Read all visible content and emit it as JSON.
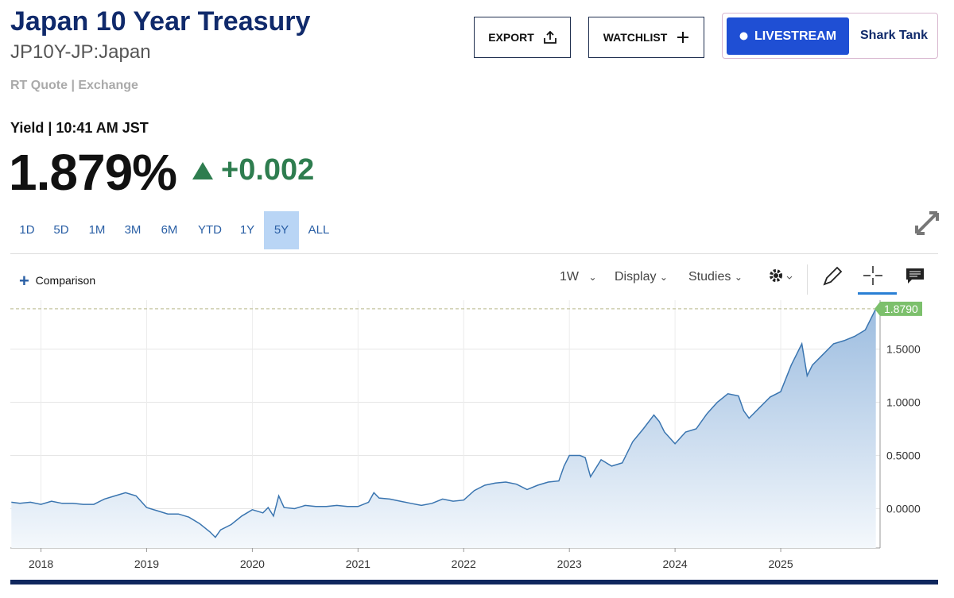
{
  "header": {
    "title": "Japan 10 Year Treasury",
    "symbol": "JP10Y-JP:Japan",
    "quote_info": "RT Quote | Exchange",
    "yield_label": "Yield | 10:41 AM JST",
    "price": "1.879%",
    "change": "+0.002"
  },
  "buttons": {
    "export": "EXPORT",
    "watchlist": "WATCHLIST",
    "livestream": "LIVESTREAM",
    "show": "Shark Tank"
  },
  "ranges": [
    "1D",
    "5D",
    "1M",
    "3M",
    "6M",
    "YTD",
    "1Y",
    "5Y",
    "ALL"
  ],
  "active_range": "5Y",
  "toolbar": {
    "comparison": "Comparison",
    "interval": "1W",
    "display": "Display",
    "studies": "Studies"
  },
  "chart_data": {
    "type": "area",
    "color": "#3a75b0",
    "x": [
      2017.72,
      2017.8,
      2017.9,
      2018.0,
      2018.1,
      2018.2,
      2018.3,
      2018.4,
      2018.5,
      2018.6,
      2018.7,
      2018.8,
      2018.9,
      2019.0,
      2019.1,
      2019.2,
      2019.3,
      2019.4,
      2019.5,
      2019.6,
      2019.65,
      2019.7,
      2019.8,
      2019.9,
      2020.0,
      2020.1,
      2020.15,
      2020.2,
      2020.25,
      2020.3,
      2020.4,
      2020.5,
      2020.6,
      2020.7,
      2020.8,
      2020.9,
      2021.0,
      2021.1,
      2021.15,
      2021.2,
      2021.3,
      2021.4,
      2021.5,
      2021.6,
      2021.7,
      2021.8,
      2021.9,
      2022.0,
      2022.1,
      2022.2,
      2022.3,
      2022.4,
      2022.5,
      2022.6,
      2022.7,
      2022.8,
      2022.9,
      2022.95,
      2023.0,
      2023.1,
      2023.15,
      2023.2,
      2023.3,
      2023.4,
      2023.5,
      2023.6,
      2023.7,
      2023.8,
      2023.85,
      2023.9,
      2024.0,
      2024.1,
      2024.2,
      2024.3,
      2024.4,
      2024.5,
      2024.6,
      2024.65,
      2024.7,
      2024.8,
      2024.9,
      2025.0,
      2025.1,
      2025.2,
      2025.25,
      2025.3,
      2025.4,
      2025.5,
      2025.6,
      2025.7,
      2025.8,
      2025.9
    ],
    "values": [
      0.06,
      0.05,
      0.06,
      0.04,
      0.07,
      0.05,
      0.05,
      0.04,
      0.04,
      0.09,
      0.12,
      0.15,
      0.12,
      0.01,
      -0.02,
      -0.05,
      -0.05,
      -0.08,
      -0.14,
      -0.22,
      -0.27,
      -0.2,
      -0.15,
      -0.07,
      -0.01,
      -0.04,
      0.01,
      -0.07,
      0.12,
      0.01,
      0.0,
      0.03,
      0.02,
      0.02,
      0.03,
      0.02,
      0.02,
      0.06,
      0.15,
      0.1,
      0.09,
      0.07,
      0.05,
      0.03,
      0.05,
      0.09,
      0.07,
      0.08,
      0.17,
      0.22,
      0.24,
      0.25,
      0.23,
      0.18,
      0.22,
      0.25,
      0.26,
      0.4,
      0.5,
      0.5,
      0.48,
      0.3,
      0.46,
      0.4,
      0.43,
      0.63,
      0.75,
      0.88,
      0.82,
      0.72,
      0.61,
      0.72,
      0.75,
      0.89,
      1.0,
      1.08,
      1.06,
      0.92,
      0.85,
      0.95,
      1.05,
      1.1,
      1.35,
      1.55,
      1.25,
      1.35,
      1.45,
      1.55,
      1.58,
      1.62,
      1.68,
      1.879
    ],
    "xlim": [
      2017.71,
      2025.94
    ],
    "xticks": [
      2018,
      2019,
      2020,
      2021,
      2022,
      2023,
      2024,
      2025
    ],
    "ylim": [
      -0.37,
      1.96
    ],
    "yticks": [
      {
        "value": 0,
        "label": "0.0000"
      },
      {
        "value": 0.5,
        "label": "0.5000"
      },
      {
        "value": 1,
        "label": "1.0000"
      },
      {
        "value": 1.5,
        "label": "1.5000"
      }
    ],
    "last_value": {
      "value": 1.879,
      "label": "1.8790"
    },
    "grid": true
  }
}
